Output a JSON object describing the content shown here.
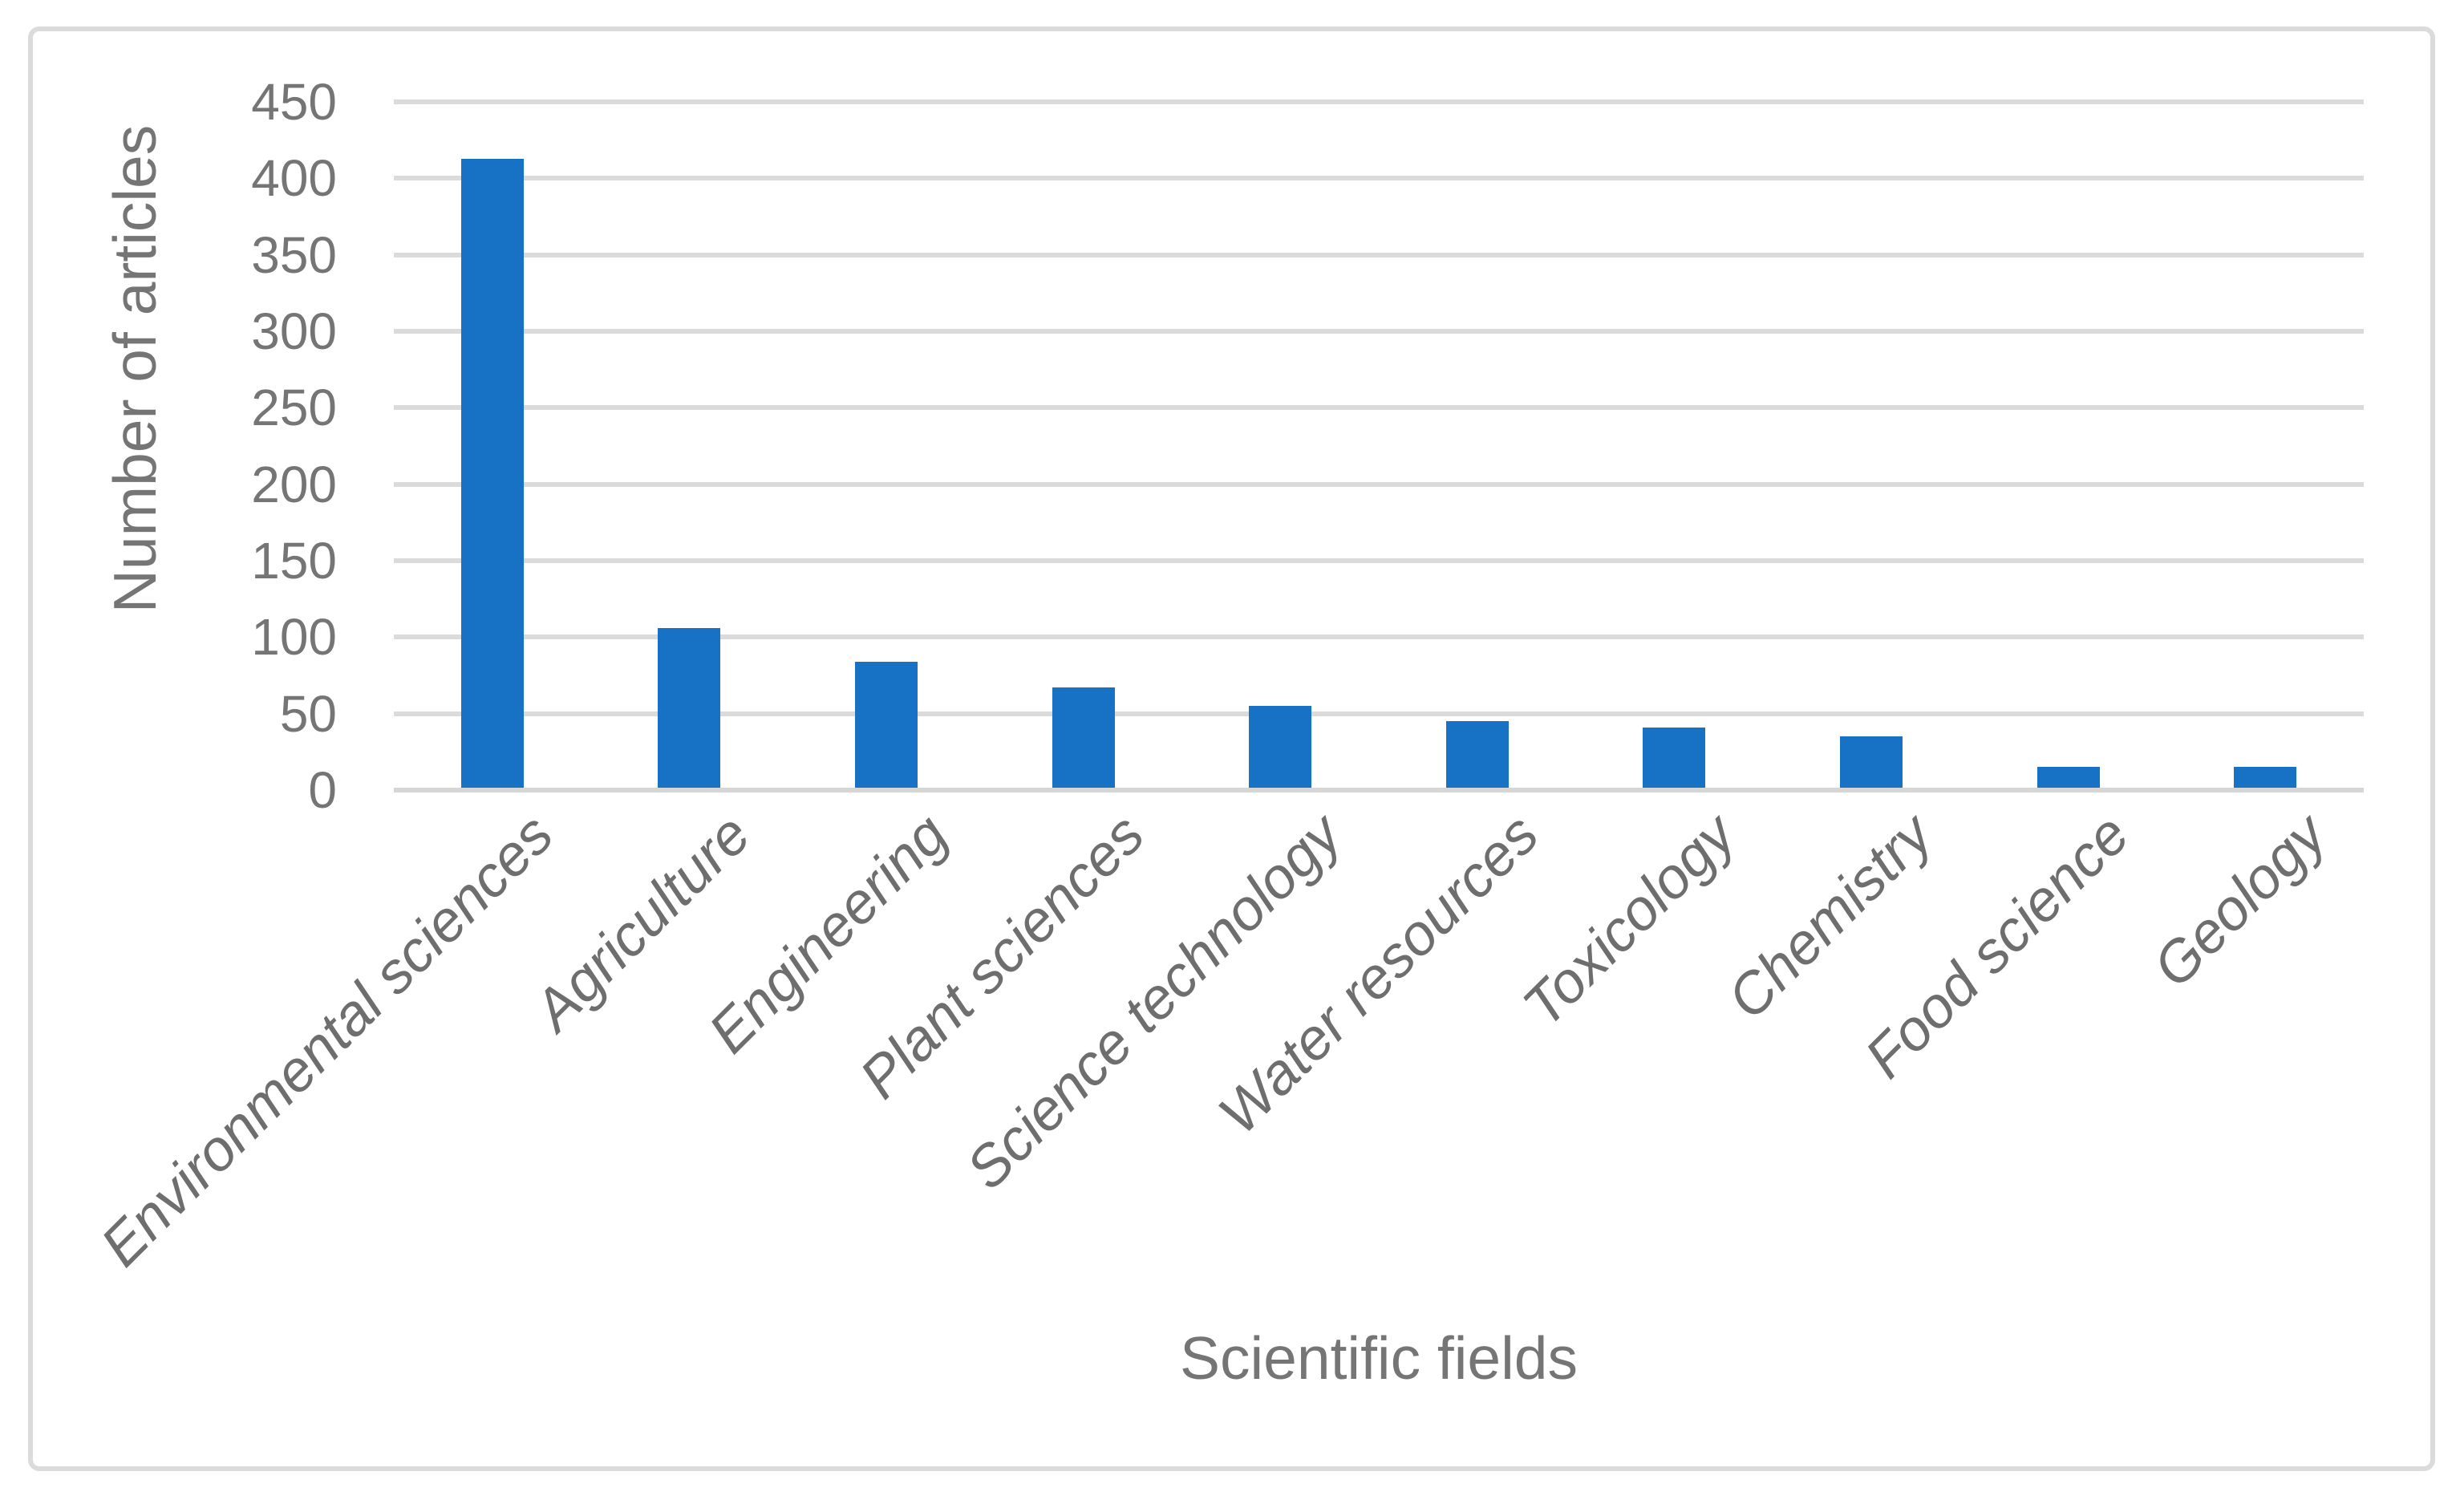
{
  "chart_data": {
    "type": "bar",
    "title": "",
    "categories": [
      "Environmental sciences",
      "Agriculture",
      "Engineering",
      "Plant sciences",
      "Science technology",
      "Water resources",
      "Toxicology",
      "Chemistry",
      "Food science",
      "Geology"
    ],
    "values": [
      413,
      106,
      84,
      67,
      55,
      45,
      41,
      35,
      15,
      15
    ],
    "xlabel": "Scientific fields",
    "ylabel": "Number of articles",
    "ylim": [
      0,
      450
    ],
    "ytick_interval": 50,
    "yticks": [
      0,
      50,
      100,
      150,
      200,
      250,
      300,
      350,
      400,
      450
    ],
    "grid": true,
    "legend": "none",
    "colors": {
      "bar": "#1772C6",
      "gridline": "#DBDBDB",
      "axis_line": "#D6D6D6",
      "tick_text": "#757575",
      "category_text": "#6E6E6E",
      "title_text": "#757575",
      "frame_border": "#DBDBDB",
      "background": "#FFFFFF"
    }
  }
}
